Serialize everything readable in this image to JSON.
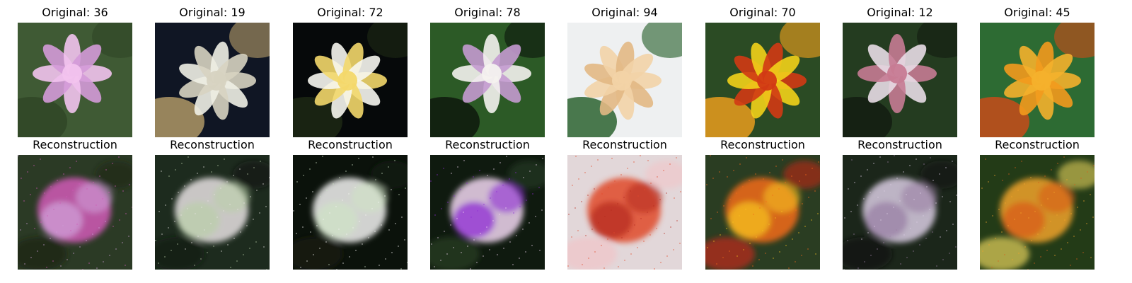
{
  "panels": [
    {
      "original_title": "Original: 36",
      "reconstruction_title": "Reconstruction",
      "original_colors": {
        "bg": "#3f5a34",
        "a": "#d49ad8",
        "b": "#f2c3ee",
        "c": "#2f4526"
      },
      "reconstruction_colors": {
        "bg": "#2b3a25",
        "a": "#d15ab7",
        "b": "#cfa0d8",
        "c": "#1a2416"
      }
    },
    {
      "original_title": "Original: 19",
      "reconstruction_title": "Reconstruction",
      "original_colors": {
        "bg": "#101624",
        "a": "#f0f0e6",
        "b": "#d7d3c1",
        "c": "#b9a06a"
      },
      "reconstruction_colors": {
        "bg": "#1d2b1e",
        "a": "#e7e2e3",
        "b": "#b9cfa9",
        "c": "#0f1812"
      }
    },
    {
      "original_title": "Original: 72",
      "reconstruction_title": "Reconstruction",
      "original_colors": {
        "bg": "#06090a",
        "a": "#f7f7f0",
        "b": "#f3d86a",
        "c": "#1e2a14"
      },
      "reconstruction_colors": {
        "bg": "#0b120b",
        "a": "#f3f3f2",
        "b": "#cfe2c5",
        "c": "#182016"
      }
    },
    {
      "original_title": "Original: 78",
      "reconstruction_title": "Reconstruction",
      "original_colors": {
        "bg": "#2c5a26",
        "a": "#c49ad0",
        "b": "#f4f2ef",
        "c": "#0c140b"
      },
      "reconstruction_colors": {
        "bg": "#0f1a0f",
        "a": "#f2d7f2",
        "b": "#8e2bd3",
        "c": "#2a3e25"
      }
    },
    {
      "original_title": "Original: 94",
      "reconstruction_title": "Reconstruction",
      "original_colors": {
        "bg": "#eef0f1",
        "a": "#e2b884",
        "b": "#f2d3a7",
        "c": "#1f5a24"
      },
      "reconstruction_colors": {
        "bg": "#e2d7d9",
        "a": "#e14a2a",
        "b": "#b72c1f",
        "c": "#f1c5c8"
      }
    },
    {
      "original_title": "Original: 70",
      "reconstruction_title": "Reconstruction",
      "original_colors": {
        "bg": "#2b4b24",
        "a": "#f2d21a",
        "b": "#d23a14",
        "c": "#f5a11d"
      },
      "reconstruction_colors": {
        "bg": "#2a3d22",
        "a": "#f36b1a",
        "b": "#f5c220",
        "c": "#c02a18"
      }
    },
    {
      "original_title": "Original: 12",
      "reconstruction_title": "Reconstruction",
      "original_colors": {
        "bg": "#243c20",
        "a": "#e8dbe6",
        "b": "#c77b93",
        "c": "#121a10"
      },
      "reconstruction_colors": {
        "bg": "#1b261a",
        "a": "#d9cce3",
        "b": "#9a7fa4",
        "c": "#101610"
      }
    },
    {
      "original_title": "Original: 45",
      "reconstruction_title": "Reconstruction",
      "original_colors": {
        "bg": "#2d6b33",
        "a": "#f39a1d",
        "b": "#f4b12c",
        "c": "#d14a18"
      },
      "reconstruction_colors": {
        "bg": "#233b17",
        "a": "#f0a22a",
        "b": "#d95e1b",
        "c": "#e6d25b"
      }
    }
  ]
}
